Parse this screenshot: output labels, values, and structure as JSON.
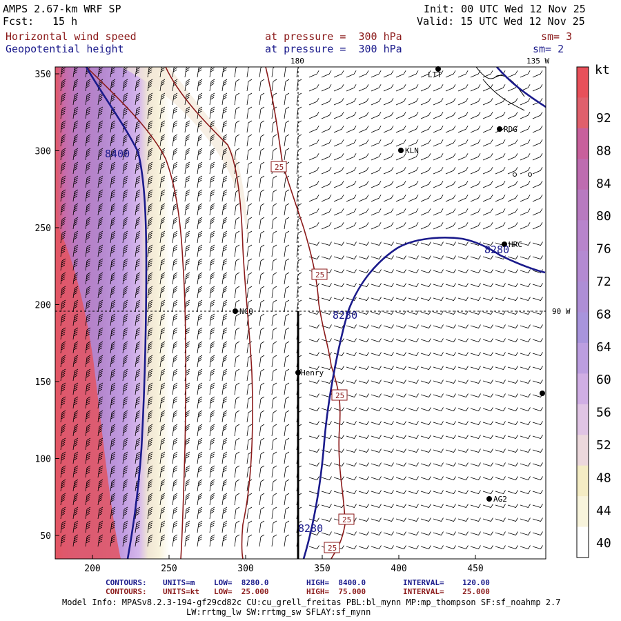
{
  "header": {
    "model": "AMPS 2.67-km WRF SP",
    "fcst_label": "Fcst:",
    "fcst_value": "15 h",
    "init": "Init: 00 UTC Wed 12 Nov 25",
    "valid": "Valid: 15 UTC Wed 12 Nov 25",
    "field1_name": "Horizontal wind speed",
    "field1_level": "at pressure =  300 hPa",
    "field1_sm": "sm= 3",
    "field2_name": "Geopotential height",
    "field2_level": "at pressure =  300 hPa",
    "field2_sm": "sm= 2"
  },
  "map": {
    "meridian_top_label": "180",
    "meridian_right_label": "135 W",
    "lat_label": "90 W",
    "stations": [
      {
        "name": "NCO"
      },
      {
        "name": "Henry"
      },
      {
        "name": "KLN"
      },
      {
        "name": "RDG"
      },
      {
        "name": "HRC"
      },
      {
        "name": "AG2"
      },
      {
        "name": "LTT"
      }
    ],
    "height_labels": [
      "8400",
      "8280",
      "8280",
      "8280"
    ],
    "speed_labels": [
      "25",
      "25",
      "25",
      "25",
      "25"
    ]
  },
  "axes": {
    "x_ticks": [
      "200",
      "250",
      "300",
      "350",
      "400",
      "450"
    ],
    "y_ticks": [
      "350",
      "300",
      "250",
      "200",
      "150",
      "100",
      "50"
    ]
  },
  "colorbar": {
    "unit": "kt",
    "labels": [
      "92",
      "88",
      "84",
      "80",
      "76",
      "72",
      "68",
      "64",
      "60",
      "56",
      "52",
      "48",
      "44",
      "40"
    ],
    "colors": [
      "#e8505a",
      "#e0606c",
      "#c8609c",
      "#be6cb0",
      "#b87ac0",
      "#b884cc",
      "#b48ad2",
      "#ae8ed6",
      "#a894dc",
      "#bc9ee0",
      "#d0aee4",
      "#e0c4e4",
      "#ecd8dc",
      "#f4ecc4",
      "#f8f4dc",
      "#ffffff"
    ]
  },
  "footer": {
    "contours_label": "CONTOURS:",
    "c1_units": "UNITS=m",
    "c1_low": "LOW=  8280.0",
    "c1_high": "HIGH=  8400.0",
    "c1_interval": "INTERVAL=    120.00",
    "c2_units": "UNITS=kt",
    "c2_low": "LOW=  25.000",
    "c2_high": "HIGH=  75.000",
    "c2_interval": "INTERVAL=    25.000",
    "model_info": "Model Info: MPASv8.2.3-194-gf29cd82c CU:cu_grell_freitas PBL:bl_mynn MP:mp_thompson SF:sf_noahmp 2.7",
    "model_info2": "LW:rrtmg_lw SW:rrtmg_sw SFLAY:sf_mynn"
  }
}
